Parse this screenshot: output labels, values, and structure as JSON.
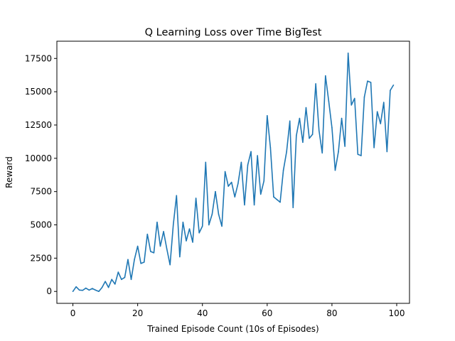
{
  "chart_data": {
    "type": "line",
    "title": "Q Learning Loss over Time BigTest",
    "xlabel": "Trained Episode Count (10s of Episodes)",
    "ylabel": "Reward",
    "xlim": [
      -4.95,
      103.95
    ],
    "ylim": [
      -895,
      18795
    ],
    "xticks": [
      0,
      20,
      40,
      60,
      80,
      100
    ],
    "yticks": [
      0,
      2500,
      5000,
      7500,
      10000,
      12500,
      15000,
      17500
    ],
    "xtick_labels": [
      "0",
      "20",
      "40",
      "60",
      "80",
      "100"
    ],
    "ytick_labels": [
      "0",
      "2500",
      "5000",
      "7500",
      "10000",
      "12500",
      "15000",
      "17500"
    ],
    "grid": false,
    "legend": "none",
    "series": [
      {
        "color": "#1f77b4",
        "x": [
          0,
          1,
          2,
          3,
          4,
          5,
          6,
          7,
          8,
          9,
          10,
          11,
          12,
          13,
          14,
          15,
          16,
          17,
          18,
          19,
          20,
          21,
          22,
          23,
          24,
          25,
          26,
          27,
          28,
          29,
          30,
          31,
          32,
          33,
          34,
          35,
          36,
          37,
          38,
          39,
          40,
          41,
          42,
          43,
          44,
          45,
          46,
          47,
          48,
          49,
          50,
          51,
          52,
          53,
          54,
          55,
          56,
          57,
          58,
          59,
          60,
          61,
          62,
          63,
          64,
          65,
          66,
          67,
          68,
          69,
          70,
          71,
          72,
          73,
          74,
          75,
          76,
          77,
          78,
          79,
          80,
          81,
          82,
          83,
          84,
          85,
          86,
          87,
          88,
          89,
          90,
          91,
          92,
          93,
          94,
          95,
          96,
          97,
          98,
          99
        ],
        "values": [
          0,
          350,
          100,
          80,
          250,
          100,
          220,
          100,
          0,
          300,
          750,
          300,
          900,
          550,
          1450,
          900,
          1050,
          2400,
          900,
          2400,
          3400,
          2100,
          2200,
          4300,
          3000,
          2900,
          5200,
          3400,
          4500,
          3200,
          2000,
          5000,
          7200,
          2600,
          5200,
          3800,
          4700,
          3700,
          7000,
          4400,
          4900,
          9700,
          5000,
          5800,
          7500,
          5800,
          4900,
          9000,
          7900,
          8200,
          7100,
          8100,
          9700,
          6500,
          9500,
          10500,
          6500,
          10200,
          7300,
          8300,
          13200,
          10800,
          7100,
          6900,
          6700,
          9100,
          10500,
          12800,
          6300,
          11700,
          13000,
          11200,
          13800,
          11500,
          11800,
          15600,
          12100,
          10400,
          16200,
          14300,
          12300,
          9100,
          10500,
          13000,
          10900,
          17900,
          14000,
          14500,
          10300,
          10200,
          14600,
          15800,
          15700,
          10800,
          13500,
          12600,
          14200,
          10500,
          15100,
          15500
        ]
      }
    ]
  }
}
